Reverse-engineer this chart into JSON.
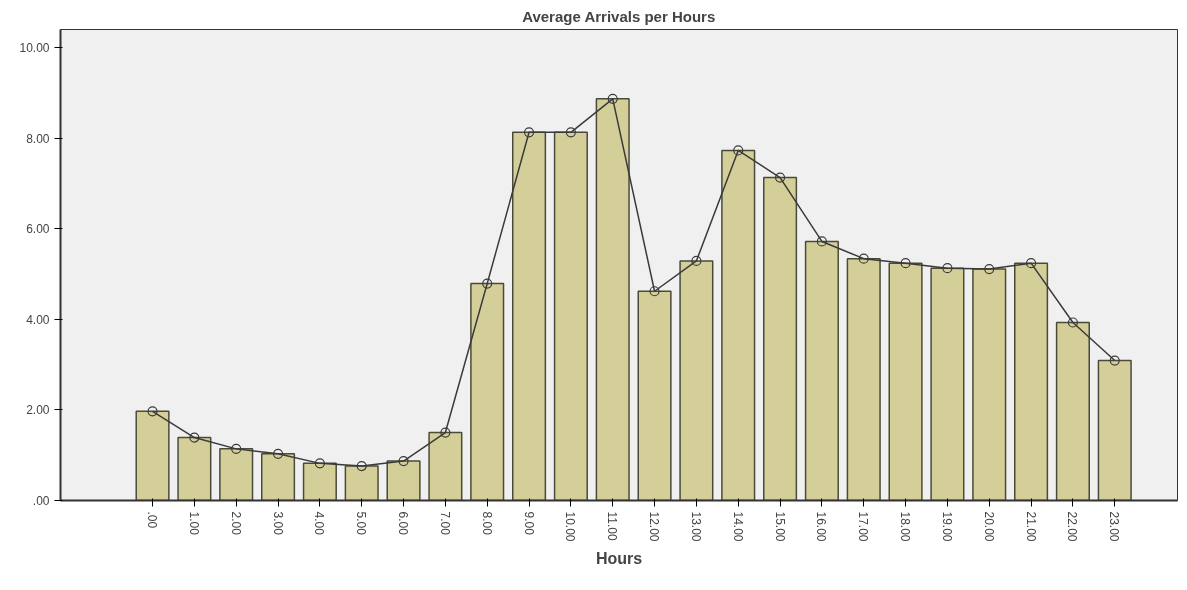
{
  "chart_data": {
    "type": "bar",
    "title": "Average Arrivals per Hours",
    "xlabel": "Hours",
    "categories": [
      ".00",
      "1.00",
      "2.00",
      "3.00",
      "4.00",
      "5.00",
      "6.00",
      "7.00",
      "8.00",
      "9.00",
      "10.00",
      "11.00",
      "12.00",
      "13.00",
      "14.00",
      "15.00",
      "16.00",
      "17.00",
      "18.00",
      "19.00",
      "20.00",
      "21.00",
      "22.00",
      "23.00"
    ],
    "series": [
      {
        "color": "#d4cf98",
        "values": [
          1.97,
          1.39,
          1.14,
          1.03,
          0.82,
          0.76,
          0.87,
          1.5,
          4.79,
          8.13,
          8.13,
          8.87,
          4.62,
          5.29,
          7.73,
          7.13,
          5.72,
          5.34,
          5.24,
          5.13,
          5.11,
          5.24,
          3.93,
          3.09
        ]
      },
      {
        "type": "line",
        "color": "#3a3a3a",
        "marker": "circle",
        "values": [
          1.97,
          1.39,
          1.14,
          1.03,
          0.82,
          0.76,
          0.87,
          1.5,
          4.79,
          8.13,
          8.13,
          8.87,
          4.62,
          5.29,
          7.73,
          7.13,
          5.72,
          5.34,
          5.24,
          5.13,
          5.11,
          5.24,
          3.93,
          3.09
        ]
      }
    ],
    "ylim": [
      0,
      10.4
    ],
    "yticks": [
      {
        "value": 0,
        "label": ".00"
      },
      {
        "value": 2,
        "label": "2.00"
      },
      {
        "value": 4,
        "label": "4.00"
      },
      {
        "value": 6,
        "label": "6.00"
      },
      {
        "value": 8,
        "label": "8.00"
      },
      {
        "value": 10,
        "label": "10.00"
      }
    ],
    "grid": false
  }
}
